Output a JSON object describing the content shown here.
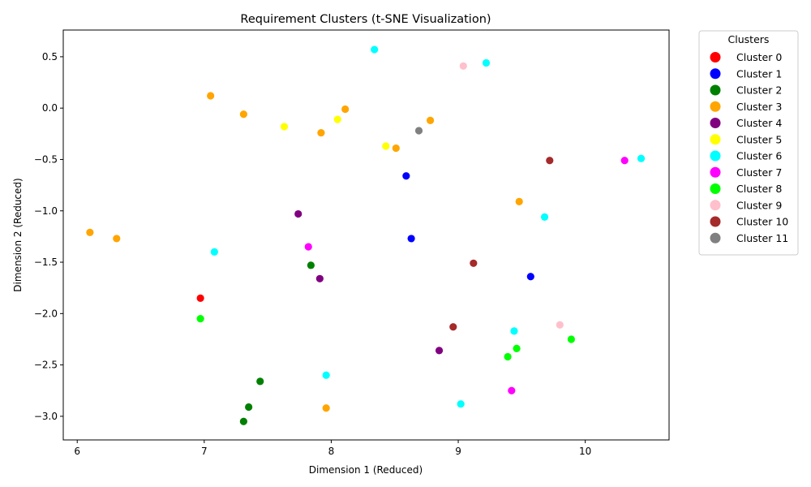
{
  "chart_data": {
    "type": "scatter",
    "title": "Requirement Clusters (t-SNE Visualization)",
    "xlabel": "Dimension 1 (Reduced)",
    "ylabel": "Dimension 2 (Reduced)",
    "xlim": [
      5.89,
      10.66
    ],
    "ylim": [
      -3.23,
      0.76
    ],
    "xticks": [
      6,
      7,
      8,
      9,
      10
    ],
    "yticks": [
      -3.0,
      -2.5,
      -2.0,
      -1.5,
      -1.0,
      -0.5,
      0.0,
      0.5
    ],
    "xtick_labels": [
      "6",
      "7",
      "8",
      "9",
      "10"
    ],
    "ytick_labels": [
      "−3.0",
      "−2.5",
      "−2.0",
      "−1.5",
      "−1.0",
      "−0.5",
      "0.0",
      "0.5"
    ],
    "grid": false,
    "legend": {
      "title": "Clusters",
      "placement": "outside-right-top"
    },
    "series": [
      {
        "name": "Cluster 0",
        "color": "#ff0000",
        "points": [
          [
            6.97,
            -1.85
          ]
        ]
      },
      {
        "name": "Cluster 1",
        "color": "#0000ff",
        "points": [
          [
            8.59,
            -0.66
          ],
          [
            8.63,
            -1.27
          ],
          [
            9.57,
            -1.64
          ]
        ]
      },
      {
        "name": "Cluster 2",
        "color": "#008000",
        "points": [
          [
            7.84,
            -1.53
          ],
          [
            7.44,
            -2.66
          ],
          [
            7.35,
            -2.91
          ],
          [
            7.31,
            -3.05
          ]
        ]
      },
      {
        "name": "Cluster 3",
        "color": "#ffa500",
        "points": [
          [
            7.05,
            0.12
          ],
          [
            7.31,
            -0.06
          ],
          [
            8.11,
            -0.01
          ],
          [
            7.92,
            -0.24
          ],
          [
            8.51,
            -0.39
          ],
          [
            8.78,
            -0.12
          ],
          [
            6.1,
            -1.21
          ],
          [
            6.31,
            -1.27
          ],
          [
            9.48,
            -0.91
          ],
          [
            7.96,
            -2.92
          ]
        ]
      },
      {
        "name": "Cluster 4",
        "color": "#800080",
        "points": [
          [
            7.74,
            -1.03
          ],
          [
            7.91,
            -1.66
          ],
          [
            8.85,
            -2.36
          ]
        ]
      },
      {
        "name": "Cluster 5",
        "color": "#ffff00",
        "points": [
          [
            7.63,
            -0.18
          ],
          [
            8.05,
            -0.11
          ],
          [
            8.43,
            -0.37
          ]
        ]
      },
      {
        "name": "Cluster 6",
        "color": "#00ffff",
        "points": [
          [
            8.34,
            0.57
          ],
          [
            9.22,
            0.44
          ],
          [
            10.44,
            -0.49
          ],
          [
            9.68,
            -1.06
          ],
          [
            7.08,
            -1.4
          ],
          [
            9.44,
            -2.17
          ],
          [
            7.96,
            -2.6
          ],
          [
            9.02,
            -2.88
          ]
        ]
      },
      {
        "name": "Cluster 7",
        "color": "#ff00ff",
        "points": [
          [
            7.82,
            -1.35
          ],
          [
            10.31,
            -0.51
          ],
          [
            9.42,
            -2.75
          ]
        ]
      },
      {
        "name": "Cluster 8",
        "color": "#00ff00",
        "points": [
          [
            6.97,
            -2.05
          ],
          [
            9.46,
            -2.34
          ],
          [
            9.39,
            -2.42
          ],
          [
            9.89,
            -2.25
          ]
        ]
      },
      {
        "name": "Cluster 9",
        "color": "#ffc0cb",
        "points": [
          [
            9.04,
            0.41
          ],
          [
            9.8,
            -2.11
          ]
        ]
      },
      {
        "name": "Cluster 10",
        "color": "#a52a2a",
        "points": [
          [
            9.72,
            -0.51
          ],
          [
            9.12,
            -1.51
          ],
          [
            8.96,
            -2.13
          ]
        ]
      },
      {
        "name": "Cluster 11",
        "color": "#808080",
        "points": [
          [
            8.69,
            -0.22
          ]
        ]
      }
    ]
  }
}
